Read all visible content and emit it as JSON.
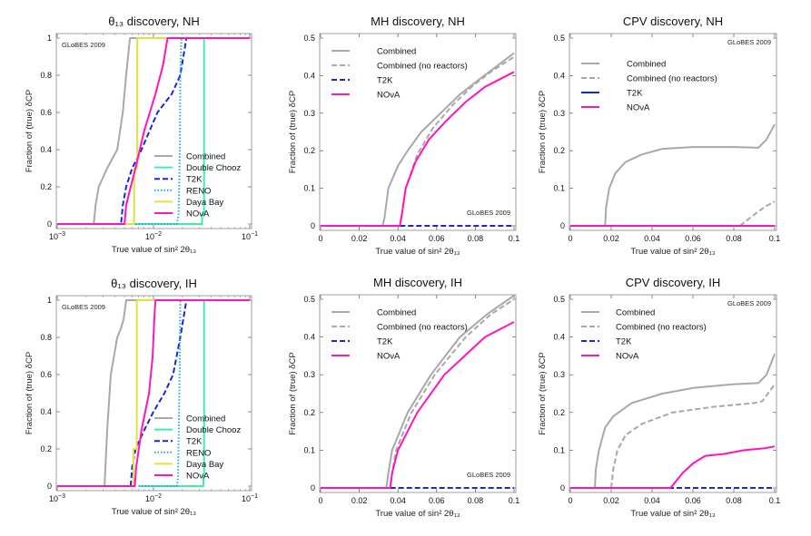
{
  "chart_data": [
    {
      "type": "line",
      "title": "θ₁₃ discovery, NH",
      "xlabel": "True value of sin² 2θ₁₃",
      "ylabel": "Fraction of (true) δCP",
      "xscale": "log",
      "xlim": [
        0.001,
        0.1
      ],
      "ylim": [
        0,
        1
      ],
      "xticks": [
        0.001,
        0.01,
        0.1
      ],
      "xtick_labels": [
        "10^-3",
        "10^-2",
        "10^-1"
      ],
      "yticks": [
        0,
        0.2,
        0.4,
        0.6,
        0.8,
        1
      ],
      "ytick_labels": [
        "0",
        "0.2",
        "0.4",
        "0.6",
        "0.8",
        "1"
      ],
      "watermark": "GLoBES 2009",
      "watermark_position": "top-left",
      "legend_position": "bottom-right",
      "series": [
        {
          "name": "Combined",
          "color": "#a8a8a8",
          "style": "solid",
          "x": [
            0.001,
            0.0024,
            0.0025,
            0.0027,
            0.0033,
            0.0042,
            0.0048,
            0.0052,
            0.0057,
            0.1
          ],
          "y": [
            0,
            0,
            0.1,
            0.2,
            0.3,
            0.4,
            0.6,
            0.8,
            1,
            1
          ]
        },
        {
          "name": "Double Chooz",
          "color": "#3cf0a8",
          "style": "solid",
          "x": [
            0.006,
            0.032,
            0.032,
            0.0335,
            0.0335,
            0.1
          ],
          "y": [
            0,
            0,
            0.05,
            0.05,
            1,
            1
          ]
        },
        {
          "name": "T2K",
          "color": "#1428e0",
          "style": "dashed",
          "x": [
            0.001,
            0.0046,
            0.0048,
            0.0052,
            0.006,
            0.0075,
            0.011,
            0.0155,
            0.019,
            0.022,
            0.1
          ],
          "y": [
            0,
            0,
            0.1,
            0.2,
            0.3,
            0.4,
            0.6,
            0.7,
            0.8,
            1,
            1
          ]
        },
        {
          "name": "RENO",
          "color": "#1ea8e8",
          "style": "dotted",
          "x": [
            0.006,
            0.0175,
            0.0182,
            0.0188,
            0.019,
            0.0195
          ],
          "y": [
            0,
            0,
            0.05,
            0.4,
            0.8,
            1
          ]
        },
        {
          "name": "Daya Bay",
          "color": "#e0e040",
          "style": "solid",
          "x": [
            0.001,
            0.0063,
            0.0063,
            0.0068,
            0.0068,
            0.014
          ],
          "y": [
            0,
            0,
            0.3,
            0.3,
            1,
            1
          ]
        },
        {
          "name": "NOνA",
          "color": "#ff14c0",
          "style": "solid",
          "x": [
            0.001,
            0.005,
            0.0052,
            0.0058,
            0.0065,
            0.008,
            0.0105,
            0.0125,
            0.014,
            0.1
          ],
          "y": [
            0,
            0,
            0.1,
            0.2,
            0.3,
            0.5,
            0.7,
            0.85,
            1,
            1
          ]
        }
      ]
    },
    {
      "type": "line",
      "title": "MH discovery, NH",
      "xlabel": "True value of sin² 2θ₁₃",
      "ylabel": "Fraction of (true) δCP",
      "xscale": "linear",
      "xlim": [
        0,
        0.1
      ],
      "ylim": [
        0,
        0.5
      ],
      "xticks": [
        0,
        0.02,
        0.04,
        0.06,
        0.08,
        0.1
      ],
      "xtick_labels": [
        "0",
        "0.02",
        "0.04",
        "0.06",
        "0.08",
        "0.1"
      ],
      "yticks": [
        0,
        0.1,
        0.2,
        0.3,
        0.4,
        0.5
      ],
      "ytick_labels": [
        "0",
        "0.1",
        "0.2",
        "0.3",
        "0.4",
        "0.5"
      ],
      "watermark": "GLoBES 2009",
      "watermark_position": "bottom-right",
      "legend_position": "top-left",
      "series": [
        {
          "name": "Combined",
          "color": "#a8a8a8",
          "style": "solid",
          "x": [
            0,
            0.032,
            0.033,
            0.035,
            0.04,
            0.045,
            0.052,
            0.062,
            0.072,
            0.082,
            0.1
          ],
          "y": [
            0,
            0,
            0.02,
            0.1,
            0.16,
            0.2,
            0.25,
            0.3,
            0.35,
            0.39,
            0.46
          ]
        },
        {
          "name": "Combined (no reactors)",
          "color": "#a8a8a8",
          "style": "dashed",
          "x": [
            0,
            0.041,
            0.042,
            0.044,
            0.05,
            0.058,
            0.068,
            0.078,
            0.088,
            0.1
          ],
          "y": [
            0,
            0,
            0.03,
            0.1,
            0.19,
            0.26,
            0.32,
            0.37,
            0.41,
            0.45
          ]
        },
        {
          "name": "T2K",
          "color": "#1428e0",
          "style": "dashed",
          "x": [
            0.041,
            0.1
          ],
          "y": [
            0,
            0
          ]
        },
        {
          "name": "NOνA",
          "color": "#ff14c0",
          "style": "solid",
          "x": [
            0,
            0.041,
            0.042,
            0.044,
            0.049,
            0.056,
            0.065,
            0.075,
            0.085,
            0.1
          ],
          "y": [
            0,
            0,
            0.03,
            0.1,
            0.17,
            0.23,
            0.28,
            0.33,
            0.37,
            0.41
          ]
        }
      ]
    },
    {
      "type": "line",
      "title": "CPV discovery, NH",
      "xlabel": "True value of sin² 2θ₁₃",
      "ylabel": "Fraction of (true) δCP",
      "xscale": "linear",
      "xlim": [
        0,
        0.1
      ],
      "ylim": [
        0,
        0.5
      ],
      "xticks": [
        0,
        0.02,
        0.04,
        0.06,
        0.08,
        0.1
      ],
      "xtick_labels": [
        "0",
        "0.02",
        "0.04",
        "0.06",
        "0.08",
        "0.1"
      ],
      "yticks": [
        0,
        0.1,
        0.2,
        0.3,
        0.4,
        0.5
      ],
      "ytick_labels": [
        "0",
        "0.1",
        "0.2",
        "0.3",
        "0.4",
        "0.5"
      ],
      "watermark": "GLoBES 2009",
      "watermark_position": "top-right",
      "legend_position": "top-left",
      "series": [
        {
          "name": "Combined",
          "color": "#a8a8a8",
          "style": "solid",
          "x": [
            0,
            0.017,
            0.0175,
            0.019,
            0.022,
            0.027,
            0.035,
            0.045,
            0.06,
            0.08,
            0.092,
            0.096,
            0.1
          ],
          "y": [
            0,
            0,
            0.05,
            0.1,
            0.14,
            0.17,
            0.19,
            0.205,
            0.21,
            0.21,
            0.208,
            0.23,
            0.27
          ]
        },
        {
          "name": "Combined (no reactors)",
          "color": "#a8a8a8",
          "style": "dashed",
          "x": [
            0.083,
            0.09,
            0.095,
            0.1
          ],
          "y": [
            0,
            0.03,
            0.05,
            0.065
          ]
        },
        {
          "name": "T2K",
          "color": "#1428e0",
          "style": "solid",
          "x": [
            0,
            0.1
          ],
          "y": [
            0,
            0
          ]
        },
        {
          "name": "NOνA",
          "color": "#ff14c0",
          "style": "solid",
          "x": [
            0,
            0.1
          ],
          "y": [
            0,
            0
          ]
        }
      ]
    },
    {
      "type": "line",
      "title": "θ₁₃ discovery, IH",
      "xlabel": "True value of sin² 2θ₁₃",
      "ylabel": "Fraction of (true) δCP",
      "xscale": "log",
      "xlim": [
        0.001,
        0.1
      ],
      "ylim": [
        0,
        1
      ],
      "xticks": [
        0.001,
        0.01,
        0.1
      ],
      "xtick_labels": [
        "10^-3",
        "10^-2",
        "10^-1"
      ],
      "yticks": [
        0,
        0.2,
        0.4,
        0.6,
        0.8,
        1
      ],
      "ytick_labels": [
        "0",
        "0.2",
        "0.4",
        "0.6",
        "0.8",
        "1"
      ],
      "watermark": "GLoBES 2009",
      "watermark_position": "top-left",
      "legend_position": "bottom-right",
      "series": [
        {
          "name": "Combined",
          "color": "#a8a8a8",
          "style": "solid",
          "x": [
            0.001,
            0.0031,
            0.0033,
            0.0036,
            0.0042,
            0.0046,
            0.0049,
            0.0052,
            0.1
          ],
          "y": [
            0,
            0,
            0.3,
            0.6,
            0.8,
            0.85,
            0.9,
            1,
            1
          ]
        },
        {
          "name": "Double Chooz",
          "color": "#3cf0a8",
          "style": "solid",
          "x": [
            0.007,
            0.033,
            0.033,
            0.0335,
            0.0335,
            0.1
          ],
          "y": [
            0,
            0,
            0.05,
            0.05,
            1,
            1
          ]
        },
        {
          "name": "T2K",
          "color": "#1428e0",
          "style": "dashed",
          "x": [
            0.001,
            0.0058,
            0.006,
            0.0065,
            0.008,
            0.01,
            0.013,
            0.016,
            0.019,
            0.022,
            0.1
          ],
          "y": [
            0,
            0,
            0.1,
            0.2,
            0.3,
            0.4,
            0.5,
            0.6,
            0.8,
            1,
            1
          ]
        },
        {
          "name": "RENO",
          "color": "#1ea8e8",
          "style": "dotted",
          "x": [
            0.007,
            0.0175,
            0.018,
            0.0183,
            0.0188,
            0.019
          ],
          "y": [
            0,
            0,
            0.05,
            0.3,
            0.7,
            1
          ]
        },
        {
          "name": "Daya Bay",
          "color": "#e0e040",
          "style": "solid",
          "x": [
            0.001,
            0.0062,
            0.0062,
            0.0067,
            0.0067,
            0.014
          ],
          "y": [
            0,
            0,
            0.2,
            0.2,
            1,
            1
          ]
        },
        {
          "name": "NOνA",
          "color": "#ff14c0",
          "style": "solid",
          "x": [
            0.001,
            0.0064,
            0.0066,
            0.0075,
            0.009,
            0.0098,
            0.0102,
            0.0105,
            0.1
          ],
          "y": [
            0,
            0,
            0.1,
            0.3,
            0.5,
            0.7,
            0.9,
            1,
            1
          ]
        }
      ]
    },
    {
      "type": "line",
      "title": "MH discovery, IH",
      "xlabel": "True value of sin² 2θ₁₃",
      "ylabel": "Fraction of (true) δCP",
      "xscale": "linear",
      "xlim": [
        0,
        0.1
      ],
      "ylim": [
        0,
        0.5
      ],
      "xticks": [
        0,
        0.02,
        0.04,
        0.06,
        0.08,
        0.1
      ],
      "xtick_labels": [
        "0",
        "0.02",
        "0.04",
        "0.06",
        "0.08",
        "0.1"
      ],
      "yticks": [
        0,
        0.1,
        0.2,
        0.3,
        0.4,
        0.5
      ],
      "ytick_labels": [
        "0",
        "0.1",
        "0.2",
        "0.3",
        "0.4",
        "0.5"
      ],
      "watermark": "GLoBES 2009",
      "watermark_position": "bottom-right",
      "legend_position": "top-left",
      "series": [
        {
          "name": "Combined",
          "color": "#a8a8a8",
          "style": "solid",
          "x": [
            0,
            0.034,
            0.035,
            0.037,
            0.045,
            0.057,
            0.072,
            0.086,
            0.1
          ],
          "y": [
            0,
            0,
            0.04,
            0.1,
            0.2,
            0.3,
            0.4,
            0.46,
            0.51
          ]
        },
        {
          "name": "Combined (no reactors)",
          "color": "#a8a8a8",
          "style": "dashed",
          "x": [
            0,
            0.036,
            0.037,
            0.039,
            0.047,
            0.059,
            0.075,
            0.088,
            0.1
          ],
          "y": [
            0,
            0,
            0.04,
            0.1,
            0.2,
            0.3,
            0.4,
            0.46,
            0.5
          ]
        },
        {
          "name": "T2K",
          "color": "#1428e0",
          "style": "dashed",
          "x": [
            0.036,
            0.1
          ],
          "y": [
            0,
            0
          ]
        },
        {
          "name": "NOνA",
          "color": "#ff14c0",
          "style": "solid",
          "x": [
            0,
            0.036,
            0.037,
            0.04,
            0.05,
            0.064,
            0.085,
            0.1
          ],
          "y": [
            0,
            0,
            0.04,
            0.1,
            0.2,
            0.3,
            0.4,
            0.44
          ]
        }
      ]
    },
    {
      "type": "line",
      "title": "CPV discovery, IH",
      "xlabel": "True value of sin² 2θ₁₃",
      "ylabel": "Fraction of (true) δCP",
      "xscale": "linear",
      "xlim": [
        0,
        0.1
      ],
      "ylim": [
        0,
        0.5
      ],
      "xticks": [
        0,
        0.02,
        0.04,
        0.06,
        0.08,
        0.1
      ],
      "xtick_labels": [
        "0",
        "0.02",
        "0.04",
        "0.06",
        "0.08",
        "0.1"
      ],
      "yticks": [
        0,
        0.1,
        0.2,
        0.3,
        0.4,
        0.5
      ],
      "ytick_labels": [
        "0",
        "0.1",
        "0.2",
        "0.3",
        "0.4",
        "0.5"
      ],
      "watermark": "GLoBES 2009",
      "watermark_position": "top-right",
      "legend_position": "top-left",
      "series": [
        {
          "name": "Combined",
          "color": "#a8a8a8",
          "style": "solid",
          "x": [
            0,
            0.012,
            0.0125,
            0.014,
            0.017,
            0.021,
            0.03,
            0.045,
            0.06,
            0.08,
            0.092,
            0.096,
            0.1
          ],
          "y": [
            0,
            0,
            0.05,
            0.1,
            0.16,
            0.19,
            0.225,
            0.25,
            0.265,
            0.275,
            0.278,
            0.3,
            0.355
          ]
        },
        {
          "name": "Combined (no reactors)",
          "color": "#a8a8a8",
          "style": "dashed",
          "x": [
            0,
            0.02,
            0.021,
            0.023,
            0.027,
            0.035,
            0.05,
            0.07,
            0.09,
            0.094,
            0.1
          ],
          "y": [
            0,
            0,
            0.05,
            0.1,
            0.14,
            0.17,
            0.2,
            0.215,
            0.225,
            0.23,
            0.275
          ]
        },
        {
          "name": "T2K",
          "color": "#1428e0",
          "style": "dashed",
          "x": [
            0,
            0.1
          ],
          "y": [
            0,
            0
          ]
        },
        {
          "name": "NOνA",
          "color": "#ff14c0",
          "style": "solid",
          "x": [
            0,
            0.049,
            0.055,
            0.06,
            0.066,
            0.075,
            0.085,
            0.095,
            0.1
          ],
          "y": [
            0,
            0,
            0.04,
            0.065,
            0.085,
            0.09,
            0.1,
            0.105,
            0.11
          ]
        }
      ]
    }
  ]
}
